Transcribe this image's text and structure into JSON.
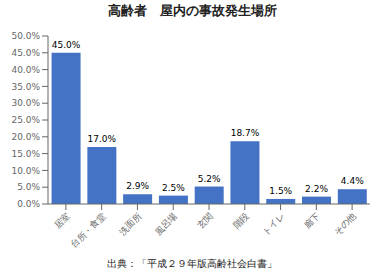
{
  "chart_data": {
    "type": "bar",
    "title": "高齢者　屋内の事故発生場所",
    "categories": [
      "居室",
      "台所・食堂",
      "洗面所",
      "風呂場",
      "玄関",
      "階段",
      "トイレ",
      "廊下",
      "その他"
    ],
    "values": [
      45.0,
      17.0,
      2.9,
      2.5,
      5.2,
      18.7,
      1.5,
      2.2,
      4.4
    ],
    "value_labels": [
      "45.0%",
      "17.0%",
      "2.9%",
      "2.5%",
      "5.2%",
      "18.7%",
      "1.5%",
      "2.2%",
      "4.4%"
    ],
    "data_labels": true,
    "color": "#4472C4",
    "ylim": [
      0,
      50
    ],
    "yticks": [
      {
        "value": 0.0,
        "label": "0.0%"
      },
      {
        "value": 5.0,
        "label": "5.0%"
      },
      {
        "value": 10.0,
        "label": "10.0%"
      },
      {
        "value": 15.0,
        "label": "15.0%"
      },
      {
        "value": 20.0,
        "label": "20.0%"
      },
      {
        "value": 25.0,
        "label": "25.0%"
      },
      {
        "value": 30.0,
        "label": "30.0%"
      },
      {
        "value": 35.0,
        "label": "35.0%"
      },
      {
        "value": 40.0,
        "label": "40.0%"
      },
      {
        "value": 45.0,
        "label": "45.0%"
      },
      {
        "value": 50.0,
        "label": "50.0%"
      }
    ],
    "grid": false,
    "annotations": [
      "出典：「平成２９年版高齢社会白書」"
    ]
  }
}
